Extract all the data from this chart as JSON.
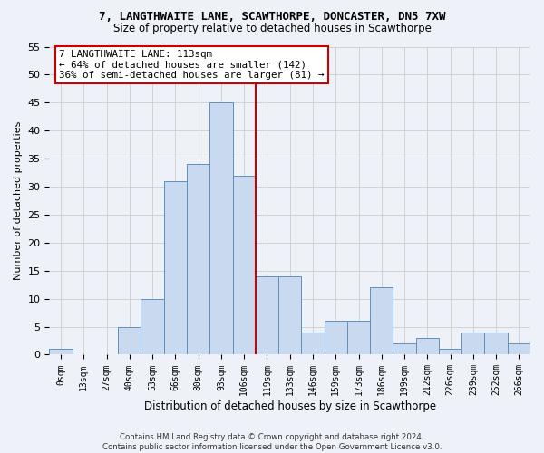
{
  "title_line1": "7, LANGTHWAITE LANE, SCAWTHORPE, DONCASTER, DN5 7XW",
  "title_line2": "Size of property relative to detached houses in Scawthorpe",
  "xlabel": "Distribution of detached houses by size in Scawthorpe",
  "ylabel": "Number of detached properties",
  "bin_labels": [
    "0sqm",
    "13sqm",
    "27sqm",
    "40sqm",
    "53sqm",
    "66sqm",
    "80sqm",
    "93sqm",
    "106sqm",
    "119sqm",
    "133sqm",
    "146sqm",
    "159sqm",
    "173sqm",
    "186sqm",
    "199sqm",
    "212sqm",
    "226sqm",
    "239sqm",
    "252sqm",
    "266sqm"
  ],
  "bar_values": [
    1,
    0,
    0,
    5,
    10,
    31,
    34,
    45,
    32,
    14,
    14,
    4,
    6,
    6,
    12,
    2,
    3,
    1,
    4,
    4,
    2
  ],
  "bar_color": "#c9d9f0",
  "bar_edgecolor": "#6090c0",
  "grid_color": "#cccccc",
  "vline_x": 8.5,
  "vline_color": "#cc0000",
  "annotation_text": "7 LANGTHWAITE LANE: 113sqm\n← 64% of detached houses are smaller (142)\n36% of semi-detached houses are larger (81) →",
  "annotation_box_edgecolor": "#cc0000",
  "annotation_box_facecolor": "#ffffff",
  "ylim": [
    0,
    55
  ],
  "yticks": [
    0,
    5,
    10,
    15,
    20,
    25,
    30,
    35,
    40,
    45,
    50,
    55
  ],
  "footer_line1": "Contains HM Land Registry data © Crown copyright and database right 2024.",
  "footer_line2": "Contains public sector information licensed under the Open Government Licence v3.0.",
  "bg_color": "#eef2f8"
}
